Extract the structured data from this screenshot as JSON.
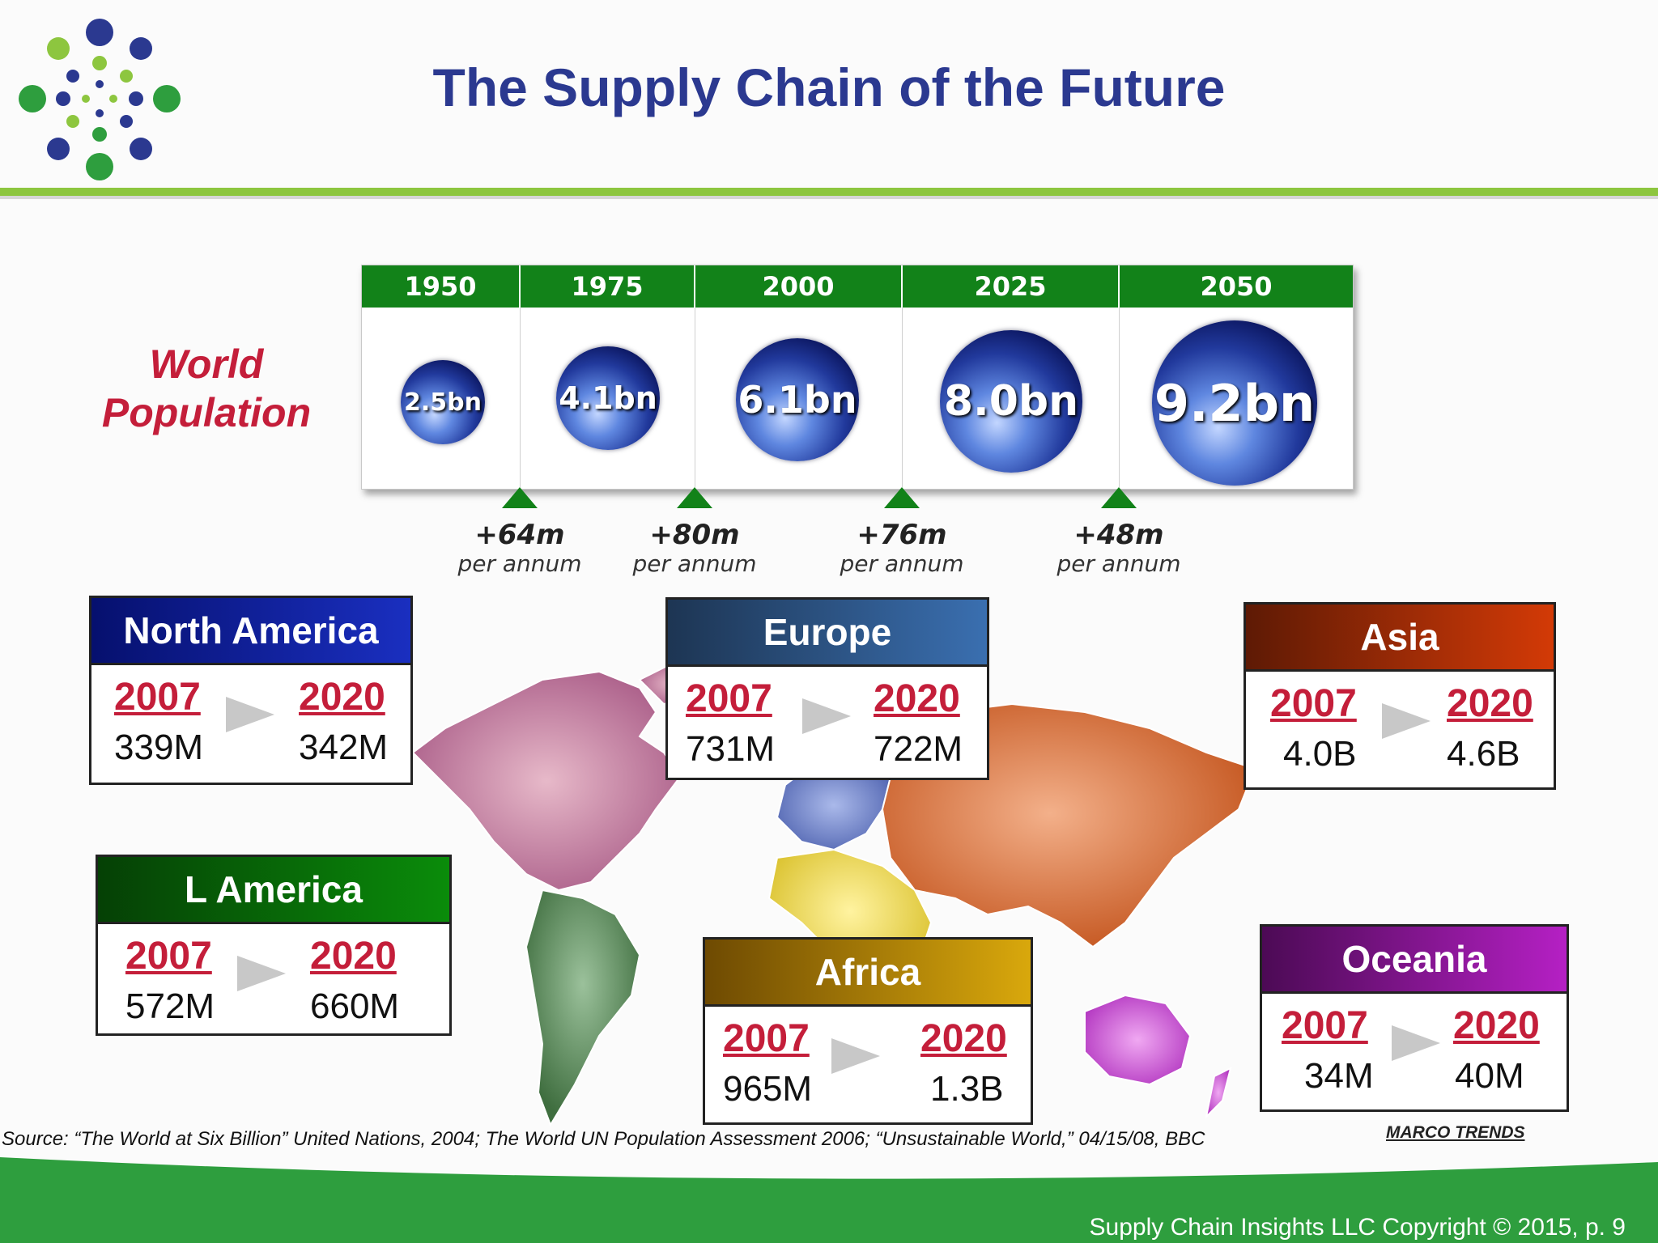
{
  "title": "The Supply Chain of the Future",
  "world_population_label": [
    "World",
    "Population"
  ],
  "timeline": [
    {
      "year": "1950",
      "population": "2.5bn"
    },
    {
      "year": "1975",
      "population": "4.1bn"
    },
    {
      "year": "2000",
      "population": "6.1bn"
    },
    {
      "year": "2025",
      "population": "8.0bn"
    },
    {
      "year": "2050",
      "population": "9.2bn"
    }
  ],
  "growth": [
    {
      "value": "+64m",
      "unit": "per annum"
    },
    {
      "value": "+80m",
      "unit": "per annum"
    },
    {
      "value": "+76m",
      "unit": "per annum"
    },
    {
      "value": "+48m",
      "unit": "per annum"
    }
  ],
  "regions": {
    "north_america": {
      "name": "North America",
      "year_a": "2007",
      "year_b": "2020",
      "val_a": "339M",
      "val_b": "342M",
      "color": "#0a1a8c"
    },
    "europe": {
      "name": "Europe",
      "year_a": "2007",
      "year_b": "2020",
      "val_a": "731M",
      "val_b": "722M",
      "color": "#2e5f95"
    },
    "asia": {
      "name": "Asia",
      "year_a": "2007",
      "year_b": "2020",
      "val_a": "4.0B",
      "val_b": "4.6B",
      "color": "#b3300a"
    },
    "latin_america": {
      "name": "L America",
      "year_a": "2007",
      "year_b": "2020",
      "val_a": "572M",
      "val_b": "660M",
      "color": "#0a7a0a"
    },
    "africa": {
      "name": "Africa",
      "year_a": "2007",
      "year_b": "2020",
      "val_a": "965M",
      "val_b": "1.3B",
      "color": "#b8900a"
    },
    "oceania": {
      "name": "Oceania",
      "year_a": "2007",
      "year_b": "2020",
      "val_a": "34M",
      "val_b": "40M",
      "color": "#8a1a9c"
    }
  },
  "source": "Source: “The World at Six Billion” United Nations, 2004; The World UN Population Assessment 2006; “Unsustainable World,” 04/15/08, BBC",
  "marco_trends": "MARCO TRENDS",
  "copyright": "Supply Chain Insights LLC Copyright © 2015, p. 9"
}
